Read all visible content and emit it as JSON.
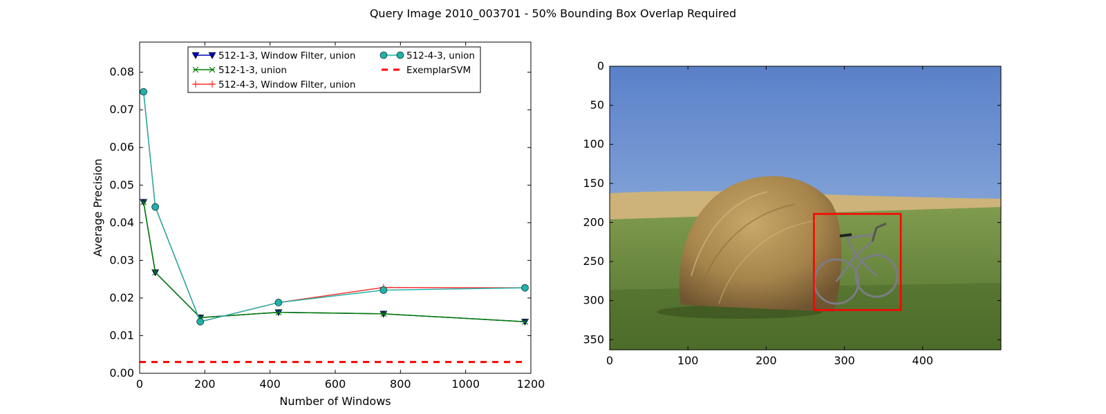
{
  "figure": {
    "title": "Query Image 2010_003701 - 50% Bounding Box Overlap Required"
  },
  "chart_data": [
    {
      "type": "line",
      "title": "",
      "xlabel": "Number of Windows",
      "ylabel": "Average Precision",
      "xlim": [
        0,
        1200
      ],
      "ylim": [
        0.0,
        0.088
      ],
      "xticks": [
        0,
        200,
        400,
        600,
        800,
        1000,
        1200
      ],
      "xtick_labels": [
        "0",
        "200",
        "400",
        "600",
        "800",
        "1000",
        "1200"
      ],
      "yticks": [
        0.0,
        0.01,
        0.02,
        0.03,
        0.04,
        0.05,
        0.06,
        0.07,
        0.08
      ],
      "ytick_labels": [
        "0.00",
        "0.01",
        "0.02",
        "0.03",
        "0.04",
        "0.05",
        "0.06",
        "0.07",
        "0.08"
      ],
      "grid": false,
      "legend_position": "top-center",
      "series": [
        {
          "name": "512-1-3, Window Filter, union",
          "color": "#0000b3",
          "marker": "triangle-down",
          "x": [
            12,
            48,
            186,
            426,
            748,
            1182
          ],
          "y": [
            0.0455,
            0.0268,
            0.0148,
            0.0162,
            0.0158,
            0.0137
          ]
        },
        {
          "name": "512-1-3, union",
          "color": "#008000",
          "marker": "x",
          "x": [
            12,
            48,
            186,
            426,
            748,
            1182
          ],
          "y": [
            0.0455,
            0.0268,
            0.0148,
            0.0162,
            0.0158,
            0.0137
          ]
        },
        {
          "name": "512-4-3, Window Filter, union",
          "color": "#ff3030",
          "marker": "plus",
          "x": [
            12,
            48,
            186,
            426,
            748,
            1182
          ],
          "y": [
            0.0748,
            0.0442,
            0.0137,
            0.0188,
            0.0228,
            0.0227
          ]
        },
        {
          "name": "512-4-3, union",
          "color": "#20b2aa",
          "marker": "circle",
          "x": [
            12,
            48,
            186,
            426,
            748,
            1182
          ],
          "y": [
            0.0748,
            0.0442,
            0.0137,
            0.0188,
            0.0221,
            0.0227
          ]
        },
        {
          "name": "ExemplarSVM",
          "color": "#ff0000",
          "marker": "none",
          "dashed": true,
          "x": [
            0,
            1182
          ],
          "y": [
            0.003,
            0.003
          ]
        }
      ]
    },
    {
      "type": "image",
      "title": "",
      "description": "photo of a hay bale with a bicycle leaning against it in a green field under a blue sky",
      "xlim": [
        0,
        500
      ],
      "ylim": [
        363,
        0
      ],
      "xticks": [
        0,
        100,
        200,
        300,
        400
      ],
      "xtick_labels": [
        "0",
        "100",
        "200",
        "300",
        "400"
      ],
      "yticks": [
        0,
        50,
        100,
        150,
        200,
        250,
        300,
        350
      ],
      "ytick_labels": [
        "0",
        "50",
        "100",
        "150",
        "200",
        "250",
        "300",
        "350"
      ],
      "bounding_box": {
        "x0": 261,
        "y0": 189,
        "x1": 372,
        "y1": 312,
        "color": "#ff0000"
      }
    }
  ]
}
